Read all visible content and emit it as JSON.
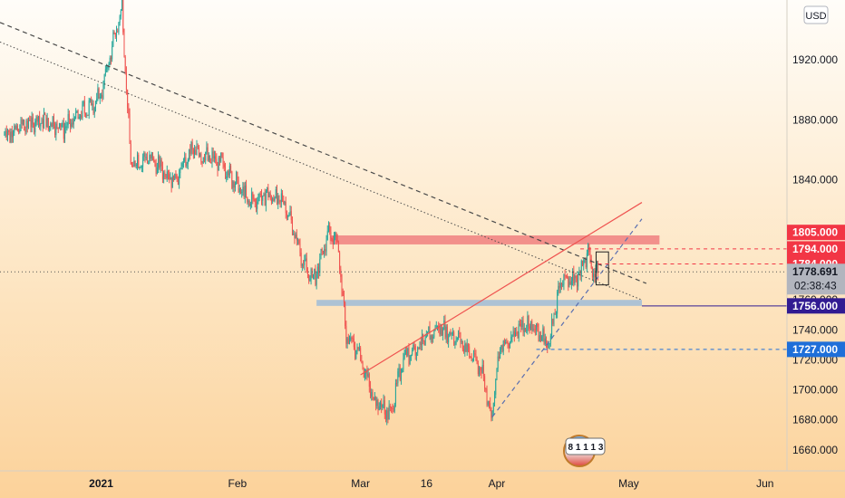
{
  "currency_label": "USD",
  "logo_text": "8 1 1 1 3",
  "colors": {
    "up": "#26a69a",
    "down": "#ef5350",
    "resistance_zone": "#f08080",
    "support_zone": "#9fbcd8",
    "trend_line": "#4a4a4a",
    "channel_line": "#ef5350",
    "support_trend": "#5a6fb0",
    "tag_red": "#f23645",
    "tag_purple": "#311b92",
    "tag_blue": "#1e6fd9",
    "tag_grey": "#b2b5be"
  },
  "chart_data": {
    "type": "candlestick",
    "title": "",
    "xlabel": "",
    "ylabel": "",
    "ylim": [
      1646,
      1960
    ],
    "y_ticks": [
      "1660.000",
      "1680.000",
      "1700.000",
      "1720.000",
      "1740.000",
      "1760.000",
      "1840.000",
      "1880.000",
      "1920.000"
    ],
    "x_ticks": [
      {
        "label": "2021",
        "date": "2021-01-01"
      },
      {
        "label": "Feb",
        "date": "2021-02-01"
      },
      {
        "label": "Mar",
        "date": "2021-03-01"
      },
      {
        "label": "16",
        "date": "2021-03-16"
      },
      {
        "label": "Apr",
        "date": "2021-04-01"
      },
      {
        "label": "May",
        "date": "2021-05-01"
      },
      {
        "label": "Jun",
        "date": "2021-06-01"
      }
    ],
    "x_range": [
      "2020-12-09",
      "2021-06-06"
    ],
    "price_tags": [
      {
        "label": "1805.000",
        "value": 1805,
        "color": "red"
      },
      {
        "label": "1794.000",
        "value": 1794,
        "color": "red"
      },
      {
        "label": "1784.000",
        "value": 1784,
        "color": "red"
      },
      {
        "label": "1778.691",
        "value": 1778.691,
        "color": "grey",
        "sub": "02:38:43"
      },
      {
        "label": "1756.000",
        "value": 1756,
        "color": "purple"
      },
      {
        "label": "1727.000",
        "value": 1727,
        "color": "blue"
      }
    ],
    "key_prices": [
      {
        "date": "2020-12-10",
        "price": 1870
      },
      {
        "date": "2020-12-18",
        "price": 1880
      },
      {
        "date": "2020-12-24",
        "price": 1875
      },
      {
        "date": "2021-01-01",
        "price": 1895
      },
      {
        "date": "2021-01-06",
        "price": 1955
      },
      {
        "date": "2021-01-08",
        "price": 1850
      },
      {
        "date": "2021-01-12",
        "price": 1855
      },
      {
        "date": "2021-01-18",
        "price": 1840
      },
      {
        "date": "2021-01-22",
        "price": 1860
      },
      {
        "date": "2021-01-29",
        "price": 1850
      },
      {
        "date": "2021-02-04",
        "price": 1825
      },
      {
        "date": "2021-02-08",
        "price": 1830
      },
      {
        "date": "2021-02-12",
        "price": 1825
      },
      {
        "date": "2021-02-17",
        "price": 1778
      },
      {
        "date": "2021-02-19",
        "price": 1775
      },
      {
        "date": "2021-02-22",
        "price": 1805
      },
      {
        "date": "2021-02-24",
        "price": 1800
      },
      {
        "date": "2021-02-26",
        "price": 1735
      },
      {
        "date": "2021-03-01",
        "price": 1725
      },
      {
        "date": "2021-03-04",
        "price": 1695
      },
      {
        "date": "2021-03-08",
        "price": 1683
      },
      {
        "date": "2021-03-11",
        "price": 1722
      },
      {
        "date": "2021-03-16",
        "price": 1733
      },
      {
        "date": "2021-03-19",
        "price": 1742
      },
      {
        "date": "2021-03-24",
        "price": 1733
      },
      {
        "date": "2021-03-29",
        "price": 1712
      },
      {
        "date": "2021-03-31",
        "price": 1682
      },
      {
        "date": "2021-04-02",
        "price": 1728
      },
      {
        "date": "2021-04-07",
        "price": 1742
      },
      {
        "date": "2021-04-09",
        "price": 1744
      },
      {
        "date": "2021-04-13",
        "price": 1730
      },
      {
        "date": "2021-04-16",
        "price": 1775
      },
      {
        "date": "2021-04-19",
        "price": 1772
      },
      {
        "date": "2021-04-22",
        "price": 1792
      },
      {
        "date": "2021-04-23",
        "price": 1778
      },
      {
        "date": "2021-04-24",
        "price": 1779
      }
    ],
    "zones": [
      {
        "name": "resistance",
        "from_date": "2021-02-22",
        "to_date": "2021-05-08",
        "low": 1797,
        "high": 1803
      },
      {
        "name": "support",
        "from_date": "2021-02-19",
        "to_date": "2021-05-04",
        "low": 1756,
        "high": 1760
      }
    ],
    "lines": [
      {
        "name": "descending-trendline",
        "style": "dashed",
        "from": {
          "date": "2020-12-09",
          "price": 1945
        },
        "to": {
          "date": "2021-05-05",
          "price": 1771
        }
      },
      {
        "name": "descending-dotted",
        "style": "dotted",
        "from": {
          "date": "2020-12-09",
          "price": 1932
        },
        "to": {
          "date": "2021-05-04",
          "price": 1760
        }
      },
      {
        "name": "rising-channel",
        "style": "solid",
        "from": {
          "date": "2021-03-01",
          "price": 1710
        },
        "to": {
          "date": "2021-05-04",
          "price": 1825
        }
      },
      {
        "name": "rising-support",
        "style": "dashed",
        "from": {
          "date": "2021-03-31",
          "price": 1682
        },
        "to": {
          "date": "2021-05-04",
          "price": 1814
        }
      }
    ]
  }
}
